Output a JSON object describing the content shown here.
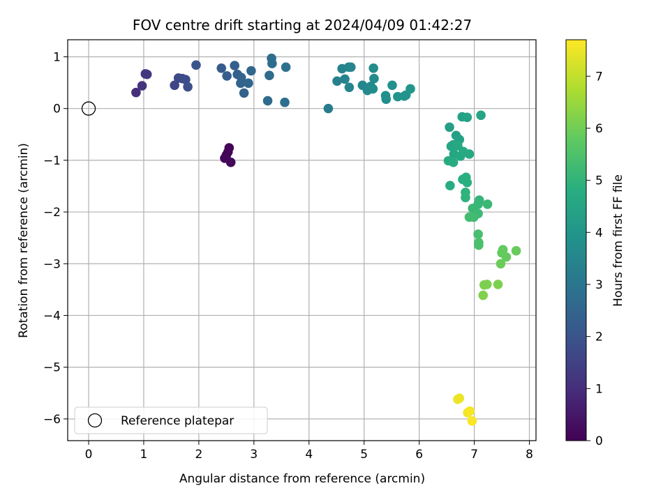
{
  "chart_data": {
    "type": "scatter",
    "title": "FOV centre drift starting at 2024/04/09 01:42:27",
    "xlabel": "Angular distance from reference (arcmin)",
    "ylabel": "Rotation from reference (arcmin)",
    "xlim": [
      -0.38,
      8.12
    ],
    "ylim": [
      -6.42,
      1.33
    ],
    "xticks": [
      0,
      1,
      2,
      3,
      4,
      5,
      6,
      7,
      8
    ],
    "yticks": [
      -6,
      -5,
      -4,
      -3,
      -2,
      -1,
      0,
      1
    ],
    "grid": true,
    "colormap": "viridis",
    "colorbar": {
      "label": "Hours from first FF file",
      "range": [
        0,
        7.7
      ],
      "ticks": [
        0,
        1,
        2,
        3,
        4,
        5,
        6,
        7
      ]
    },
    "legend": {
      "placement": "lower-left",
      "entries": [
        "Reference platepar"
      ]
    },
    "reference": {
      "x": 0,
      "y": 0,
      "marker": "open-circle"
    },
    "points": [
      {
        "x": 2.55,
        "y": -0.76,
        "h": 0.05
      },
      {
        "x": 2.53,
        "y": -0.84,
        "h": 0.08
      },
      {
        "x": 2.5,
        "y": -0.9,
        "h": 0.1
      },
      {
        "x": 2.47,
        "y": -0.96,
        "h": 0.12
      },
      {
        "x": 2.58,
        "y": -1.04,
        "h": 0.15
      },
      {
        "x": 0.86,
        "y": 0.31,
        "h": 1.05
      },
      {
        "x": 0.97,
        "y": 0.44,
        "h": 1.15
      },
      {
        "x": 1.03,
        "y": 0.67,
        "h": 1.2
      },
      {
        "x": 1.06,
        "y": 0.66,
        "h": 1.25
      },
      {
        "x": 1.56,
        "y": 0.45,
        "h": 1.6
      },
      {
        "x": 1.63,
        "y": 0.59,
        "h": 1.7
      },
      {
        "x": 1.7,
        "y": 0.58,
        "h": 1.75
      },
      {
        "x": 1.76,
        "y": 0.56,
        "h": 1.8
      },
      {
        "x": 1.8,
        "y": 0.42,
        "h": 1.85
      },
      {
        "x": 1.95,
        "y": 0.84,
        "h": 1.95
      },
      {
        "x": 2.41,
        "y": 0.78,
        "h": 2.2
      },
      {
        "x": 2.51,
        "y": 0.63,
        "h": 2.25
      },
      {
        "x": 2.65,
        "y": 0.83,
        "h": 2.3
      },
      {
        "x": 2.7,
        "y": 0.66,
        "h": 2.35
      },
      {
        "x": 2.77,
        "y": 0.6,
        "h": 2.4
      },
      {
        "x": 2.76,
        "y": 0.49,
        "h": 2.45
      },
      {
        "x": 2.82,
        "y": 0.3,
        "h": 2.45
      },
      {
        "x": 2.9,
        "y": 0.49,
        "h": 2.5
      },
      {
        "x": 2.95,
        "y": 0.73,
        "h": 2.55
      },
      {
        "x": 3.25,
        "y": 0.15,
        "h": 2.65
      },
      {
        "x": 3.28,
        "y": 0.64,
        "h": 2.7
      },
      {
        "x": 3.32,
        "y": 0.97,
        "h": 2.7
      },
      {
        "x": 3.33,
        "y": 0.87,
        "h": 2.75
      },
      {
        "x": 3.56,
        "y": 0.12,
        "h": 2.8
      },
      {
        "x": 3.58,
        "y": 0.8,
        "h": 2.85
      },
      {
        "x": 4.35,
        "y": 0.0,
        "h": 3.2
      },
      {
        "x": 4.51,
        "y": 0.53,
        "h": 3.35
      },
      {
        "x": 4.6,
        "y": 0.77,
        "h": 3.4
      },
      {
        "x": 4.65,
        "y": 0.57,
        "h": 3.4
      },
      {
        "x": 4.72,
        "y": 0.8,
        "h": 3.45
      },
      {
        "x": 4.73,
        "y": 0.41,
        "h": 3.45
      },
      {
        "x": 4.76,
        "y": 0.8,
        "h": 3.5
      },
      {
        "x": 4.97,
        "y": 0.45,
        "h": 3.55
      },
      {
        "x": 5.06,
        "y": 0.35,
        "h": 3.6
      },
      {
        "x": 5.12,
        "y": 0.43,
        "h": 3.6
      },
      {
        "x": 5.16,
        "y": 0.38,
        "h": 3.65
      },
      {
        "x": 5.18,
        "y": 0.58,
        "h": 3.65
      },
      {
        "x": 5.17,
        "y": 0.78,
        "h": 3.7
      },
      {
        "x": 5.39,
        "y": 0.25,
        "h": 3.8
      },
      {
        "x": 5.4,
        "y": 0.18,
        "h": 3.8
      },
      {
        "x": 5.51,
        "y": 0.45,
        "h": 3.85
      },
      {
        "x": 5.61,
        "y": 0.23,
        "h": 3.9
      },
      {
        "x": 5.73,
        "y": 0.24,
        "h": 3.95
      },
      {
        "x": 5.76,
        "y": 0.26,
        "h": 3.95
      },
      {
        "x": 5.84,
        "y": 0.38,
        "h": 4.0
      },
      {
        "x": 6.55,
        "y": -0.36,
        "h": 4.3
      },
      {
        "x": 6.67,
        "y": -0.52,
        "h": 4.35
      },
      {
        "x": 6.73,
        "y": -0.6,
        "h": 4.4
      },
      {
        "x": 6.78,
        "y": -0.16,
        "h": 4.4
      },
      {
        "x": 6.87,
        "y": -0.17,
        "h": 4.45
      },
      {
        "x": 7.12,
        "y": -0.13,
        "h": 4.5
      },
      {
        "x": 6.58,
        "y": -0.73,
        "h": 4.5
      },
      {
        "x": 6.62,
        "y": -0.7,
        "h": 4.55
      },
      {
        "x": 6.63,
        "y": -0.88,
        "h": 4.55
      },
      {
        "x": 6.7,
        "y": -0.72,
        "h": 4.6
      },
      {
        "x": 6.75,
        "y": -0.92,
        "h": 4.6
      },
      {
        "x": 6.8,
        "y": -0.83,
        "h": 4.65
      },
      {
        "x": 6.91,
        "y": -0.88,
        "h": 4.65
      },
      {
        "x": 6.53,
        "y": -1.01,
        "h": 4.7
      },
      {
        "x": 6.62,
        "y": -1.04,
        "h": 4.7
      },
      {
        "x": 6.56,
        "y": -1.49,
        "h": 4.75
      },
      {
        "x": 6.79,
        "y": -1.37,
        "h": 4.8
      },
      {
        "x": 6.85,
        "y": -1.33,
        "h": 4.85
      },
      {
        "x": 6.87,
        "y": -1.43,
        "h": 4.85
      },
      {
        "x": 6.84,
        "y": -1.62,
        "h": 4.95
      },
      {
        "x": 6.84,
        "y": -1.72,
        "h": 4.95
      },
      {
        "x": 7.09,
        "y": -1.77,
        "h": 5.05
      },
      {
        "x": 7.07,
        "y": -1.85,
        "h": 5.1
      },
      {
        "x": 6.97,
        "y": -1.93,
        "h": 5.15
      },
      {
        "x": 7.24,
        "y": -1.85,
        "h": 5.15
      },
      {
        "x": 7.07,
        "y": -2.03,
        "h": 5.2
      },
      {
        "x": 6.99,
        "y": -2.1,
        "h": 5.25
      },
      {
        "x": 6.91,
        "y": -2.1,
        "h": 5.3
      },
      {
        "x": 7.07,
        "y": -2.43,
        "h": 5.4
      },
      {
        "x": 7.08,
        "y": -2.59,
        "h": 5.45
      },
      {
        "x": 7.08,
        "y": -2.64,
        "h": 5.45
      },
      {
        "x": 7.52,
        "y": -2.73,
        "h": 5.8
      },
      {
        "x": 7.5,
        "y": -2.79,
        "h": 5.85
      },
      {
        "x": 7.58,
        "y": -2.87,
        "h": 5.85
      },
      {
        "x": 7.76,
        "y": -2.75,
        "h": 5.9
      },
      {
        "x": 7.48,
        "y": -3.0,
        "h": 5.95
      },
      {
        "x": 7.18,
        "y": -3.41,
        "h": 6.1
      },
      {
        "x": 7.23,
        "y": -3.4,
        "h": 6.15
      },
      {
        "x": 7.43,
        "y": -3.4,
        "h": 6.15
      },
      {
        "x": 7.16,
        "y": -3.61,
        "h": 6.2
      },
      {
        "x": 6.73,
        "y": -5.6,
        "h": 7.5
      },
      {
        "x": 6.7,
        "y": -5.62,
        "h": 7.5
      },
      {
        "x": 6.88,
        "y": -5.88,
        "h": 7.55
      },
      {
        "x": 6.92,
        "y": -5.85,
        "h": 7.6
      },
      {
        "x": 6.96,
        "y": -6.04,
        "h": 7.65
      }
    ]
  }
}
